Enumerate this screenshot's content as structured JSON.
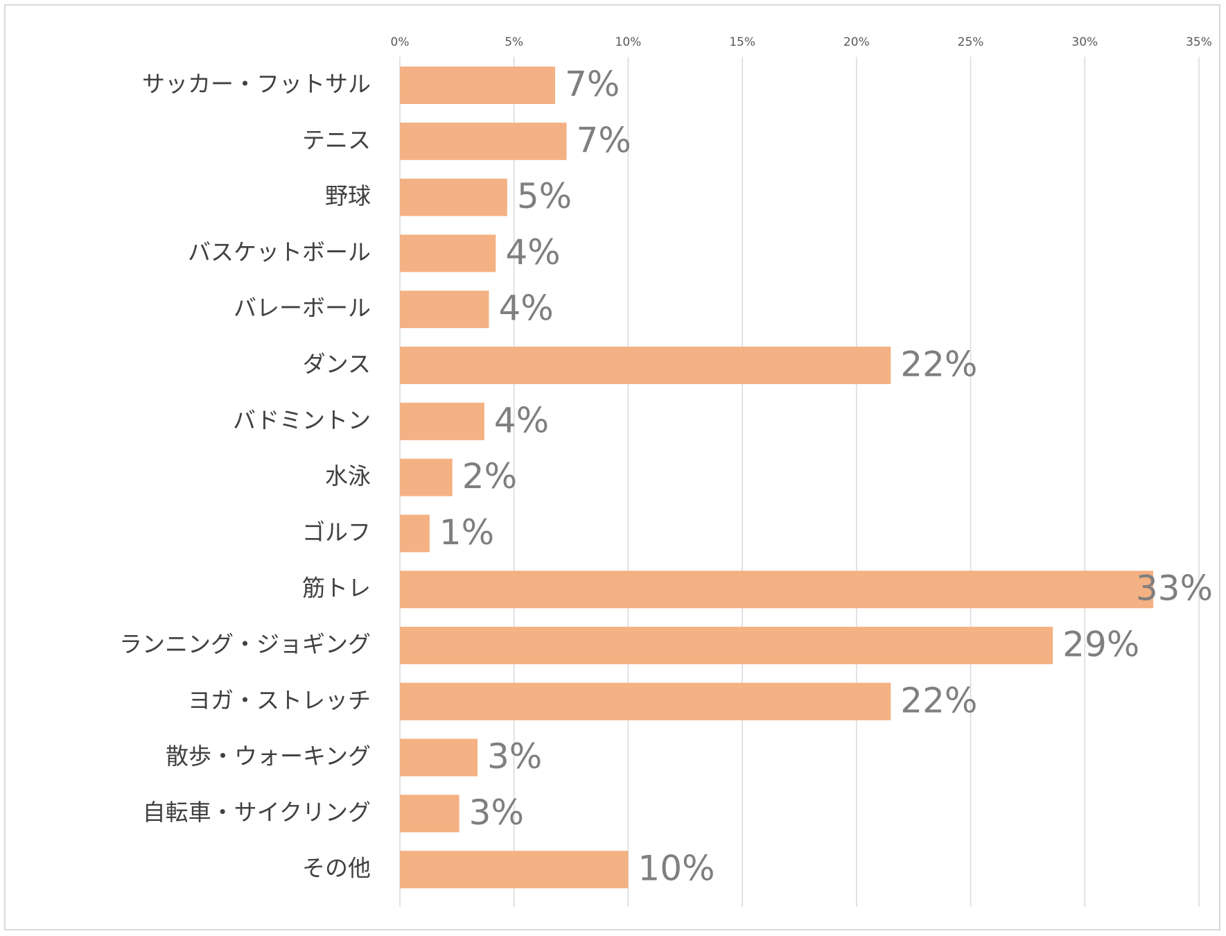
{
  "chart_data": {
    "type": "bar",
    "orientation": "horizontal",
    "categories": [
      "サッカー・フットサル",
      "テニス",
      "野球",
      "バスケットボール",
      "バレーボール",
      "ダンス",
      "バドミントン",
      "水泳",
      "ゴルフ",
      "筋トレ",
      "ランニング・ジョギング",
      "ヨガ・ストレッチ",
      "散歩・ウォーキング",
      "自転車・サイクリング",
      "その他"
    ],
    "values": [
      6.8,
      7.3,
      4.7,
      4.2,
      3.9,
      21.5,
      3.7,
      2.3,
      1.3,
      33.0,
      28.6,
      21.5,
      3.4,
      2.6,
      10.0
    ],
    "data_labels": [
      "7%",
      "7%",
      "5%",
      "4%",
      "4%",
      "22%",
      "4%",
      "2%",
      "1%",
      "33%",
      "29%",
      "22%",
      "3%",
      "3%",
      "10%"
    ],
    "xlim": [
      0,
      35
    ],
    "x_ticks": [
      0,
      5,
      10,
      15,
      20,
      25,
      30,
      35
    ],
    "x_tick_labels": [
      "0%",
      "5%",
      "10%",
      "15%",
      "20%",
      "25%",
      "30%",
      "35%"
    ],
    "x_axis_position": "top",
    "grid": true,
    "title": "",
    "xlabel": "",
    "ylabel": "",
    "bar_color": "#f4b183",
    "grid_color": "#d9d9d9"
  }
}
